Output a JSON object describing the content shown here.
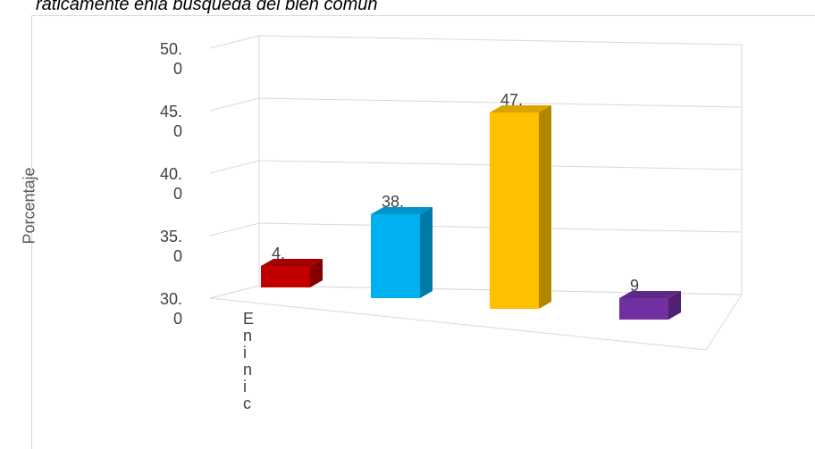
{
  "chart_data": {
    "type": "bar3d",
    "title": "ráticamente enla búsqueda del bien común",
    "y_label": "Porcentaje",
    "categories": [
      "Eninic",
      null,
      null,
      null
    ],
    "values": [
      4,
      38,
      47,
      9
    ],
    "value_labels": [
      "4.",
      "38.",
      "47.",
      "9"
    ],
    "colors": [
      "#c00000",
      "#00b0f0",
      "#ffc000",
      "#7030a0"
    ],
    "ylim": [
      30,
      50
    ],
    "yticks": [
      {
        "value": 30,
        "label": "30.0"
      },
      {
        "value": 35,
        "label": "35.0"
      },
      {
        "value": 40,
        "label": "40.0"
      },
      {
        "value": 45,
        "label": "45.0"
      },
      {
        "value": 50,
        "label": "50.0"
      }
    ],
    "grid": true
  }
}
